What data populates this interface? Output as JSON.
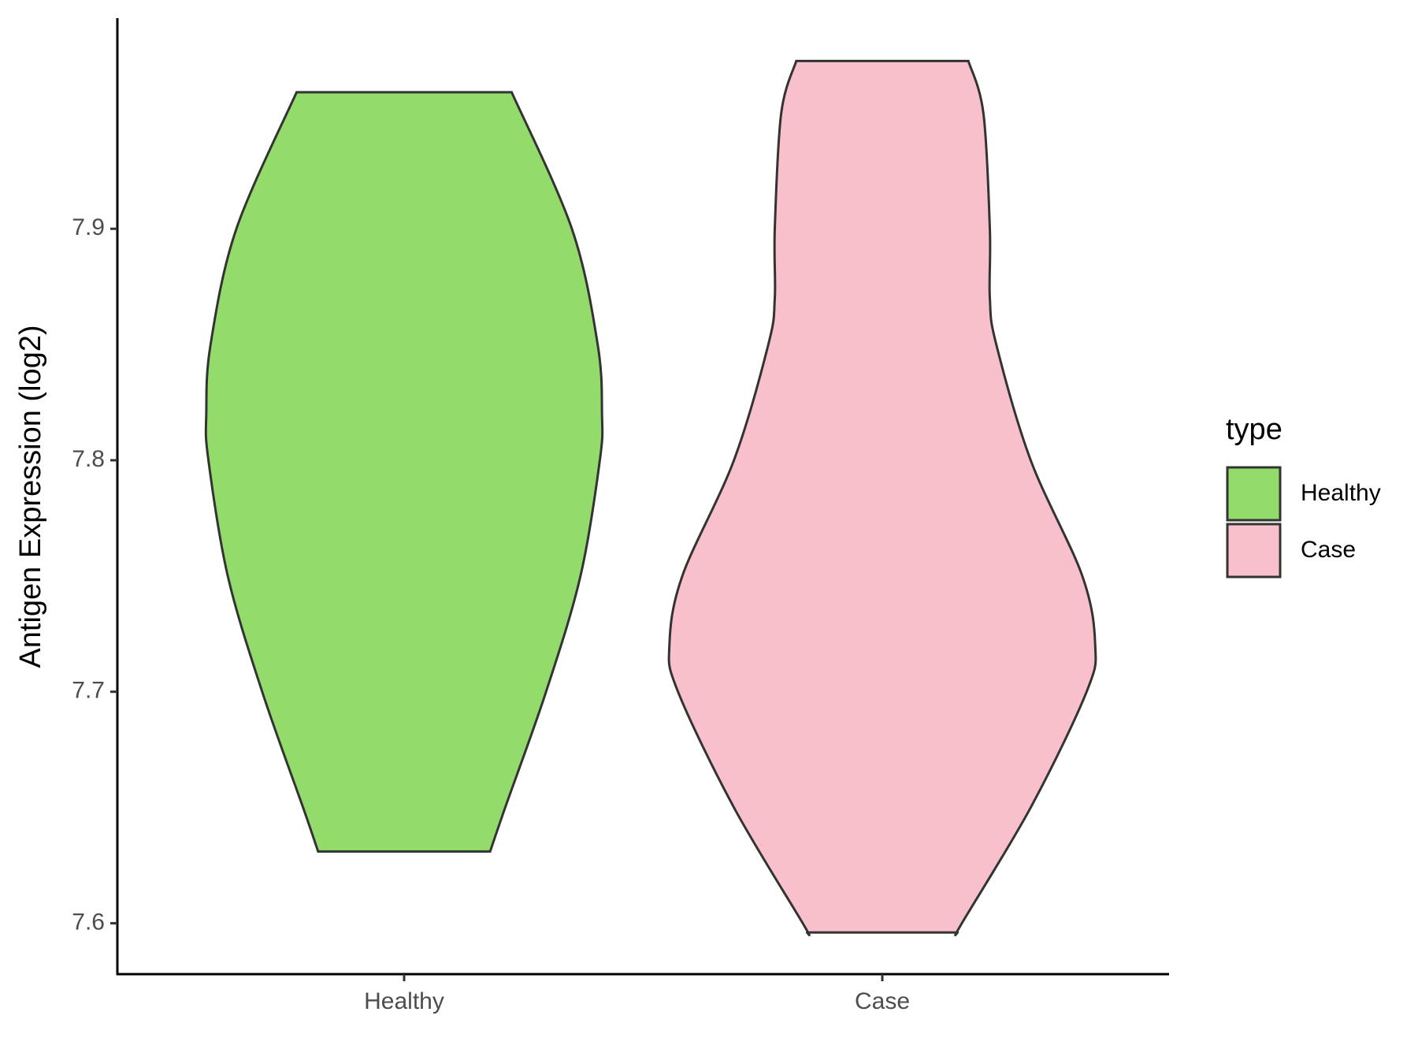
{
  "chart_data": {
    "type": "violin",
    "y_label": "Antigen Expression (log2)",
    "categories": [
      "Healthy",
      "Case"
    ],
    "ylim": [
      7.578,
      7.991
    ],
    "yticks": [
      7.6,
      7.7,
      7.8,
      7.9
    ],
    "legend_title": "type",
    "legend_position": "right",
    "series": [
      {
        "name": "Healthy",
        "color": "#93dc6b",
        "density": {
          "y": [
            7.959,
            7.9,
            7.85,
            7.82,
            7.8,
            7.75,
            7.7,
            7.65,
            7.631
          ],
          "width": [
            0.5,
            0.78,
            0.9,
            0.92,
            0.91,
            0.82,
            0.66,
            0.47,
            0.4
          ]
        }
      },
      {
        "name": "Case",
        "color": "#f7c0cb",
        "density": {
          "y": [
            7.9725,
            7.95,
            7.9,
            7.87,
            7.85,
            7.8,
            7.75,
            7.72,
            7.7,
            7.65,
            7.6,
            7.596
          ],
          "width": [
            0.4,
            0.47,
            0.5,
            0.5,
            0.53,
            0.69,
            0.93,
            0.99,
            0.95,
            0.69,
            0.37,
            0.35
          ]
        }
      }
    ]
  }
}
